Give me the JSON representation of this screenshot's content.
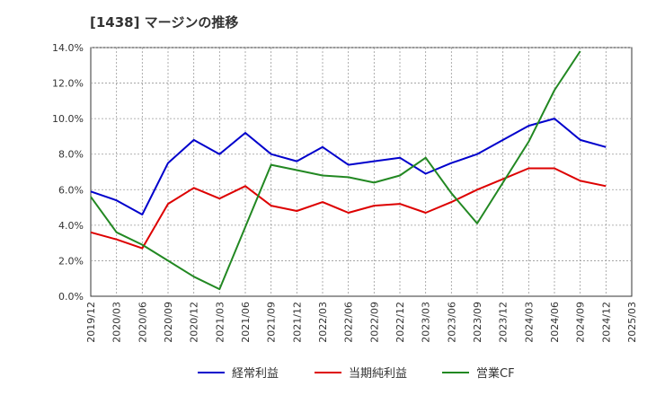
{
  "chart_data": {
    "type": "line",
    "title": "[1438]  マージンの推移",
    "xlabel": "",
    "ylabel": "",
    "ylim": [
      0,
      14
    ],
    "y_ticks": [
      "0.0%",
      "2.0%",
      "4.0%",
      "6.0%",
      "8.0%",
      "10.0%",
      "12.0%",
      "14.0%"
    ],
    "categories": [
      "2019/12",
      "2020/03",
      "2020/06",
      "2020/09",
      "2020/12",
      "2021/03",
      "2021/06",
      "2021/09",
      "2021/12",
      "2022/03",
      "2022/06",
      "2022/09",
      "2022/12",
      "2023/03",
      "2023/06",
      "2023/09",
      "2023/12",
      "2024/03",
      "2024/06",
      "2024/09",
      "2024/12",
      "2025/03"
    ],
    "grid": true,
    "legend_position": "bottom",
    "series": [
      {
        "name": "経常利益",
        "color": "#0000cc",
        "values": [
          5.9,
          5.4,
          4.6,
          7.5,
          8.8,
          8.0,
          9.2,
          8.0,
          7.6,
          8.4,
          7.4,
          7.6,
          7.8,
          6.9,
          7.5,
          8.0,
          8.8,
          9.6,
          10.0,
          8.8,
          8.4,
          null
        ]
      },
      {
        "name": "当期純利益",
        "color": "#dd0000",
        "values": [
          3.6,
          3.2,
          2.7,
          5.2,
          6.1,
          5.5,
          6.2,
          5.1,
          4.8,
          5.3,
          4.7,
          5.1,
          5.2,
          4.7,
          5.3,
          6.0,
          6.6,
          7.2,
          7.2,
          6.5,
          6.2,
          null
        ]
      },
      {
        "name": "営業CF",
        "color": "#228822",
        "values": [
          5.6,
          3.6,
          2.9,
          2.0,
          1.1,
          0.4,
          3.9,
          7.4,
          7.1,
          6.8,
          6.7,
          6.4,
          6.8,
          7.8,
          5.8,
          4.1,
          6.4,
          8.7,
          11.6,
          13.8,
          null,
          null
        ]
      }
    ]
  }
}
